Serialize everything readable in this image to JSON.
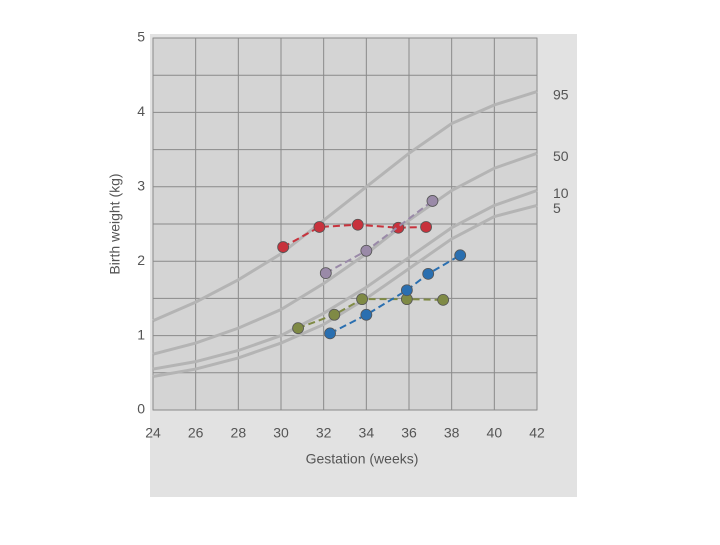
{
  "chart_data": {
    "type": "line",
    "x_label": "Gestation (weeks)",
    "y_label": "Birth weight (kg)",
    "xlim": [
      24,
      42
    ],
    "xticks": [
      24,
      26,
      28,
      30,
      32,
      34,
      36,
      38,
      40,
      42
    ],
    "ylim": [
      0,
      5
    ],
    "yticks": [
      0,
      1,
      2,
      3,
      4,
      5
    ],
    "grid": true,
    "ygrid": [
      0,
      0.5,
      1,
      1.5,
      2,
      2.5,
      3,
      3.5,
      4,
      4.5,
      5
    ],
    "series": [
      {
        "name": "95",
        "color": "#b4b4b4",
        "style": "curve",
        "x": [
          24,
          26,
          28,
          30,
          32,
          34,
          36,
          38,
          40,
          42
        ],
        "values": [
          1.2,
          1.45,
          1.75,
          2.1,
          2.55,
          3.0,
          3.45,
          3.85,
          4.1,
          4.28
        ]
      },
      {
        "name": "50",
        "color": "#b4b4b4",
        "style": "curve",
        "x": [
          24,
          26,
          28,
          30,
          32,
          34,
          36,
          38,
          40,
          42
        ],
        "values": [
          0.75,
          0.9,
          1.1,
          1.35,
          1.7,
          2.1,
          2.55,
          2.95,
          3.25,
          3.45
        ]
      },
      {
        "name": "10",
        "color": "#b4b4b4",
        "style": "curve",
        "x": [
          24,
          26,
          28,
          30,
          32,
          34,
          36,
          38,
          40,
          42
        ],
        "values": [
          0.55,
          0.65,
          0.8,
          1.0,
          1.3,
          1.65,
          2.05,
          2.45,
          2.75,
          2.95
        ]
      },
      {
        "name": "5",
        "color": "#b4b4b4",
        "style": "curve",
        "x": [
          24,
          26,
          28,
          30,
          32,
          34,
          36,
          38,
          40,
          42
        ],
        "values": [
          0.45,
          0.55,
          0.7,
          0.9,
          1.15,
          1.5,
          1.9,
          2.3,
          2.6,
          2.75
        ]
      },
      {
        "color": "#c8323c",
        "style": "points",
        "x": [
          30.1,
          31.8,
          33.6,
          35.5,
          36.8
        ],
        "values": [
          2.19,
          2.46,
          2.49,
          2.45,
          2.46
        ]
      },
      {
        "color": "#9a8aa8",
        "style": "points",
        "x": [
          32.1,
          34.0,
          37.1
        ],
        "values": [
          1.84,
          2.14,
          2.81
        ]
      },
      {
        "color": "#7f8a45",
        "style": "points",
        "x": [
          30.8,
          32.5,
          33.8,
          35.9,
          37.6
        ],
        "values": [
          1.1,
          1.28,
          1.49,
          1.49,
          1.48
        ]
      },
      {
        "color": "#2a6fb0",
        "style": "points",
        "x": [
          32.3,
          34.0,
          35.9,
          36.9,
          38.4
        ],
        "values": [
          1.03,
          1.28,
          1.61,
          1.83,
          2.08
        ]
      }
    ]
  }
}
